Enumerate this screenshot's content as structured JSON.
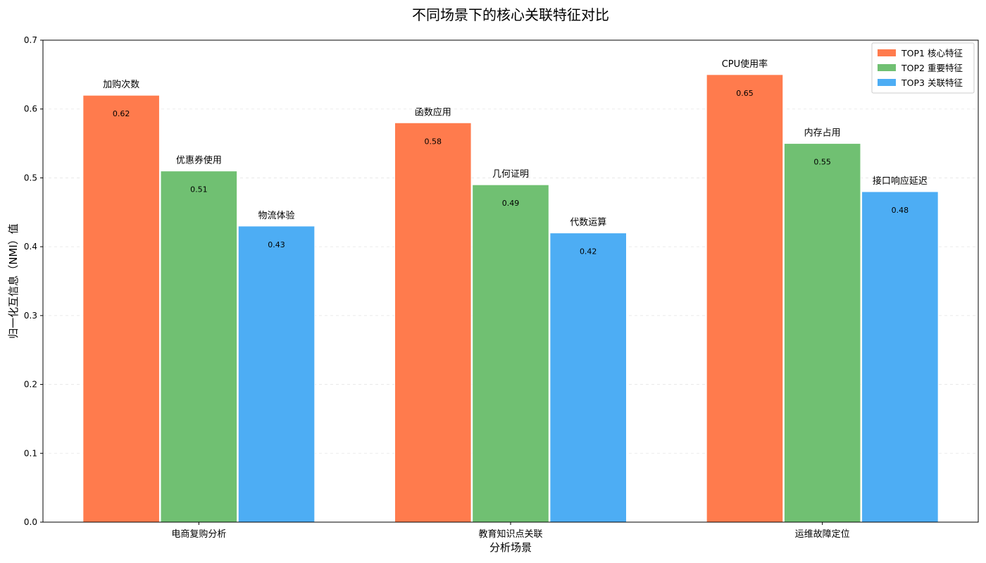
{
  "chart_data": {
    "type": "bar",
    "title": "不同场景下的核心关联特征对比",
    "xlabel": "分析场景",
    "ylabel": "归一化互信息（NMI）值",
    "ylim": [
      0,
      0.7
    ],
    "yticks": [
      0.0,
      0.1,
      0.2,
      0.3,
      0.4,
      0.5,
      0.6,
      0.7
    ],
    "ytick_labels": [
      "0.0",
      "0.1",
      "0.2",
      "0.3",
      "0.4",
      "0.5",
      "0.6",
      "0.7"
    ],
    "categories": [
      "电商复购分析",
      "教育知识点关联",
      "运维故障定位"
    ],
    "grid": true,
    "legend_position": "top-right",
    "series": [
      {
        "name": "TOP1 核心特征",
        "color": "#ff7b4d",
        "values": [
          0.62,
          0.58,
          0.65
        ],
        "value_labels": [
          "0.62",
          "0.58",
          "0.65"
        ],
        "feature_labels": [
          "加购次数",
          "函数应用",
          "CPU使用率"
        ]
      },
      {
        "name": "TOP2 重要特征",
        "color": "#70c072",
        "values": [
          0.51,
          0.49,
          0.55
        ],
        "value_labels": [
          "0.51",
          "0.49",
          "0.55"
        ],
        "feature_labels": [
          "优惠券使用",
          "几何证明",
          "内存占用"
        ]
      },
      {
        "name": "TOP3 关联特征",
        "color": "#4dadf4",
        "values": [
          0.43,
          0.42,
          0.48
        ],
        "value_labels": [
          "0.43",
          "0.42",
          "0.48"
        ],
        "feature_labels": [
          "物流体验",
          "代数运算",
          "接口响应延迟"
        ]
      }
    ]
  }
}
